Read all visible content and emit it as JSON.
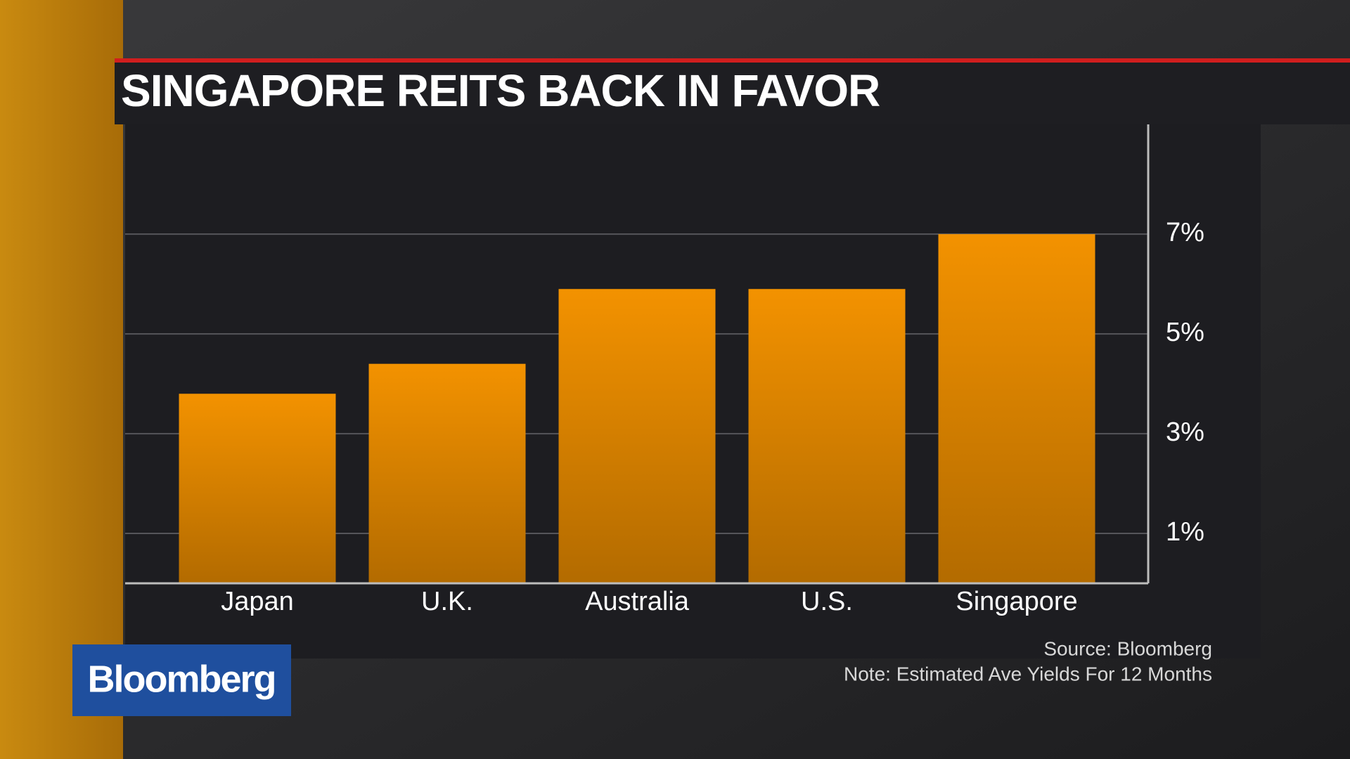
{
  "chart_data": {
    "type": "bar",
    "title": "SINGAPORE REITS BACK IN FAVOR",
    "categories": [
      "Japan",
      "U.K.",
      "Australia",
      "U.S.",
      "Singapore"
    ],
    "values": [
      3.8,
      4.4,
      5.9,
      5.9,
      7.0
    ],
    "color": "#f39200",
    "ylim": [
      0,
      9.2
    ],
    "yticks": [
      {
        "value": 1,
        "label": "1%"
      },
      {
        "value": 3,
        "label": "3%"
      },
      {
        "value": 5,
        "label": "5%"
      },
      {
        "value": 7,
        "label": "7%"
      }
    ],
    "grid": true,
    "source": "Source: Bloomberg",
    "note": "Note: Estimated Ave Yields For 12 Months"
  },
  "brand": "Bloomberg"
}
